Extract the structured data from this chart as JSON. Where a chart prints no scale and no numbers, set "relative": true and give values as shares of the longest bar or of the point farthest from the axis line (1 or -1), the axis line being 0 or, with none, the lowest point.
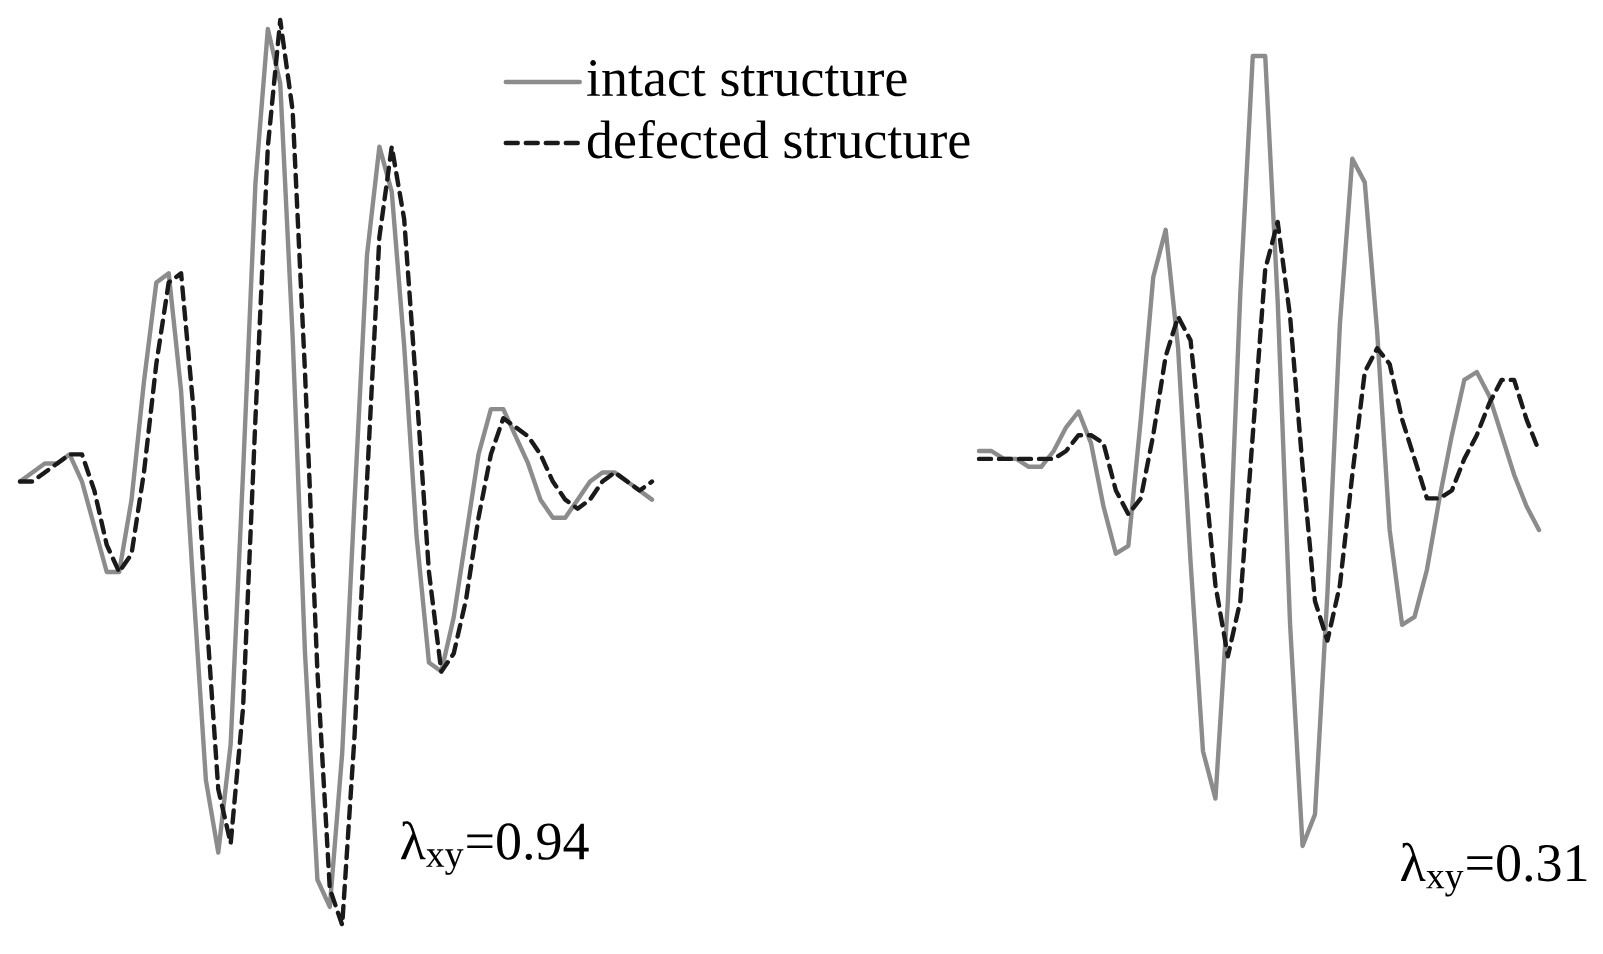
{
  "chart_data": [
    {
      "type": "line",
      "relative": true,
      "legend": "top right",
      "categories": [
        null,
        null,
        null,
        null,
        null,
        null,
        null,
        null,
        null,
        null,
        null,
        null,
        null,
        null,
        null,
        null,
        null,
        null,
        null,
        null,
        null,
        null,
        null,
        null,
        null,
        null,
        null,
        null,
        null,
        null,
        null,
        null,
        null,
        null,
        null,
        null,
        null,
        null,
        null,
        null,
        null,
        null,
        null,
        null,
        null,
        null,
        null,
        null,
        null,
        null,
        null,
        null
      ],
      "series": [
        {
          "name": "intact structure",
          "color": "#8c8c8c",
          "line_style": "solid",
          "values": [
            0.49,
            0.5,
            0.51,
            0.51,
            0.52,
            0.49,
            0.44,
            0.39,
            0.39,
            0.47,
            0.6,
            0.71,
            0.72,
            0.59,
            0.37,
            0.16,
            0.08,
            0.2,
            0.5,
            0.82,
            0.99,
            0.93,
            0.65,
            0.3,
            0.05,
            0.02,
            0.19,
            0.47,
            0.74,
            0.86,
            0.81,
            0.64,
            0.43,
            0.29,
            0.28,
            0.34,
            0.43,
            0.52,
            0.57,
            0.57,
            0.54,
            0.51,
            0.47,
            0.45,
            0.45,
            0.47,
            0.49,
            0.5,
            0.5,
            0.49,
            0.48,
            0.47
          ]
        },
        {
          "name": "defected structure",
          "color": "#1a1a1a",
          "line_style": "dashed",
          "values": [
            0.49,
            0.49,
            0.5,
            0.51,
            0.52,
            0.52,
            0.48,
            0.42,
            0.39,
            0.41,
            0.5,
            0.62,
            0.71,
            0.72,
            0.57,
            0.35,
            0.15,
            0.09,
            0.24,
            0.56,
            0.86,
            1.0,
            0.9,
            0.61,
            0.28,
            0.04,
            0.0,
            0.21,
            0.49,
            0.76,
            0.86,
            0.78,
            0.59,
            0.39,
            0.28,
            0.3,
            0.36,
            0.45,
            0.52,
            0.56,
            0.55,
            0.54,
            0.52,
            0.49,
            0.47,
            0.46,
            0.47,
            0.49,
            0.5,
            0.49,
            0.48,
            0.49
          ]
        }
      ],
      "annotations": [
        "λ$_{xy}$=0.94"
      ]
    },
    {
      "type": "line",
      "relative": true,
      "categories": [
        null,
        null,
        null,
        null,
        null,
        null,
        null,
        null,
        null,
        null,
        null,
        null,
        null,
        null,
        null,
        null,
        null,
        null,
        null,
        null,
        null,
        null,
        null,
        null,
        null,
        null,
        null,
        null,
        null,
        null,
        null,
        null,
        null,
        null,
        null,
        null,
        null,
        null,
        null,
        null,
        null,
        null,
        null,
        null,
        null,
        null
      ],
      "series": [
        {
          "color": "#8c8c8c",
          "line_style": "solid",
          "values": [
            0.5,
            0.5,
            0.49,
            0.49,
            0.48,
            0.48,
            0.5,
            0.53,
            0.55,
            0.51,
            0.43,
            0.37,
            0.38,
            0.54,
            0.72,
            0.78,
            0.63,
            0.36,
            0.12,
            0.06,
            0.31,
            0.7,
            1.0,
            1.0,
            0.69,
            0.28,
            0.0,
            0.04,
            0.32,
            0.66,
            0.87,
            0.84,
            0.65,
            0.4,
            0.28,
            0.29,
            0.35,
            0.44,
            0.52,
            0.59,
            0.6,
            0.57,
            0.52,
            0.47,
            0.43,
            0.4
          ]
        },
        {
          "color": "#1a1a1a",
          "line_style": "dashed",
          "values": [
            0.49,
            0.49,
            0.49,
            0.49,
            0.49,
            0.49,
            0.49,
            0.5,
            0.52,
            0.52,
            0.51,
            0.45,
            0.42,
            0.44,
            0.52,
            0.62,
            0.67,
            0.64,
            0.49,
            0.33,
            0.24,
            0.31,
            0.52,
            0.73,
            0.79,
            0.67,
            0.48,
            0.31,
            0.26,
            0.33,
            0.47,
            0.6,
            0.63,
            0.61,
            0.54,
            0.49,
            0.44,
            0.44,
            0.45,
            0.49,
            0.52,
            0.56,
            0.59,
            0.59,
            0.54,
            0.5
          ]
        }
      ],
      "annotations": [
        "λ$_{xy}$=0.31"
      ]
    }
  ]
}
